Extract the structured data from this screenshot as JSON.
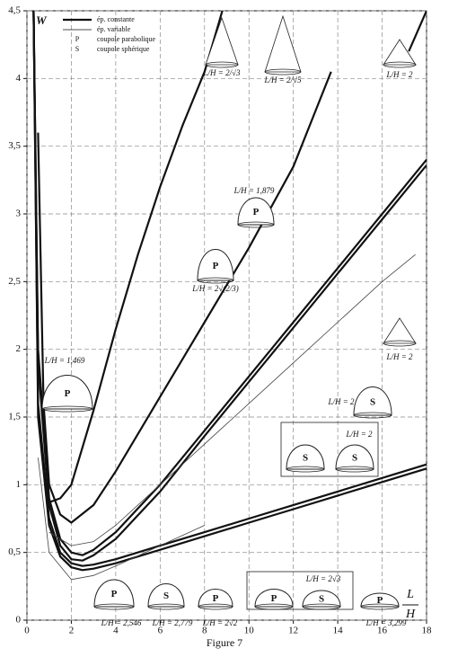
{
  "chart_data": {
    "type": "line",
    "caption": "Figure 7",
    "y_label": "W",
    "x_label": {
      "numerator": "L",
      "denominator": "H"
    },
    "xlim": [
      0,
      18
    ],
    "ylim": [
      0,
      4.5
    ],
    "xticks": [
      0,
      2,
      4,
      6,
      8,
      10,
      12,
      14,
      16,
      18
    ],
    "yticks": [
      0,
      {
        "value": 0.5,
        "label": "0,5"
      },
      1,
      {
        "value": 1.5,
        "label": "1,5"
      },
      2,
      {
        "value": 2.5,
        "label": "2,5"
      },
      3,
      {
        "value": 3.5,
        "label": "3,5"
      },
      4,
      {
        "value": 4.5,
        "label": "4,5"
      }
    ],
    "grid": true,
    "legend": [
      {
        "label": "ép. constante",
        "line_width": 2.2
      },
      {
        "label": "ép. variable",
        "line_width": 0.8
      },
      {
        "symbol": "P",
        "label": "coupole parabolique"
      },
      {
        "symbol": "S",
        "label": "coupole sphérique"
      }
    ],
    "series": [
      {
        "color": "#111111",
        "line_width": 2.2,
        "x": [
          1,
          1.5,
          2,
          3,
          4,
          5,
          6,
          7,
          8,
          8.8
        ],
        "values": [
          0.87,
          0.9,
          1.0,
          1.55,
          2.15,
          2.7,
          3.2,
          3.65,
          4.05,
          4.5
        ]
      },
      {
        "color": "#111111",
        "line_width": 2.2,
        "x": [
          0.5,
          0.75,
          1,
          1.5,
          2,
          3,
          4,
          6,
          8,
          10,
          12,
          13.7
        ],
        "values": [
          3.6,
          1.6,
          1.0,
          0.78,
          0.72,
          0.85,
          1.1,
          1.65,
          2.2,
          2.75,
          3.35,
          4.05
        ]
      },
      {
        "color": "#111111",
        "line_width": 2.2,
        "x": [
          0.3,
          0.5,
          1,
          1.5,
          2,
          2.5,
          3,
          4,
          6,
          8,
          10,
          12,
          14,
          16,
          18
        ],
        "values": [
          4.5,
          2.0,
          0.9,
          0.6,
          0.5,
          0.48,
          0.52,
          0.65,
          1.0,
          1.4,
          1.8,
          2.2,
          2.6,
          3.0,
          3.4
        ]
      },
      {
        "color": "#111111",
        "line_width": 2.2,
        "x": [
          0.3,
          0.5,
          1,
          1.5,
          2,
          2.5,
          3,
          4,
          6,
          8,
          10,
          12,
          14,
          16,
          18
        ],
        "values": [
          4.5,
          1.9,
          0.85,
          0.55,
          0.45,
          0.44,
          0.48,
          0.6,
          0.95,
          1.36,
          1.76,
          2.16,
          2.56,
          2.96,
          3.36
        ]
      },
      {
        "color": "#111111",
        "line_width": 2.2,
        "x": [
          0.3,
          0.5,
          1,
          1.5,
          2,
          2.5,
          3,
          4,
          6,
          8,
          10,
          12,
          14,
          16,
          18
        ],
        "values": [
          4.5,
          1.6,
          0.75,
          0.5,
          0.42,
          0.4,
          0.41,
          0.45,
          0.55,
          0.65,
          0.75,
          0.85,
          0.95,
          1.05,
          1.15
        ]
      },
      {
        "color": "#111111",
        "line_width": 2.2,
        "x": [
          0.3,
          0.5,
          1,
          1.5,
          2,
          2.5,
          3,
          4,
          6,
          8,
          10,
          12,
          14,
          16,
          18
        ],
        "values": [
          4.5,
          1.5,
          0.7,
          0.47,
          0.39,
          0.37,
          0.38,
          0.42,
          0.52,
          0.62,
          0.72,
          0.82,
          0.92,
          1.02,
          1.12
        ]
      },
      {
        "color": "#111111",
        "line_width": 2.2,
        "x": [
          17.2,
          18
        ],
        "values": [
          4.2,
          4.5
        ]
      },
      {
        "color": "#444444",
        "line_width": 0.8,
        "x": [
          1,
          2,
          3,
          4,
          6,
          8,
          10,
          12,
          14,
          16,
          17.5
        ],
        "values": [
          0.65,
          0.55,
          0.58,
          0.7,
          1.0,
          1.3,
          1.6,
          1.9,
          2.2,
          2.5,
          2.7
        ]
      },
      {
        "color": "#444444",
        "line_width": 0.8,
        "x": [
          0.5,
          1,
          2,
          3,
          4,
          6,
          8
        ],
        "values": [
          1.2,
          0.5,
          0.3,
          0.33,
          0.4,
          0.55,
          0.7
        ]
      }
    ],
    "annotations": [
      "L/H = 2/√3",
      "L/H = 2/√5",
      "L/H = 2",
      "L/H = 1,879",
      "L/H = 2√(2/3)",
      "L/H = 1,469",
      "L/H = 2",
      "L/H = 2",
      "L/H = 2",
      "L/H = 2,546",
      "L/H = 2,779",
      "L/H = 2√2",
      "L/H = 2√3",
      "L/H = 3,299"
    ]
  }
}
